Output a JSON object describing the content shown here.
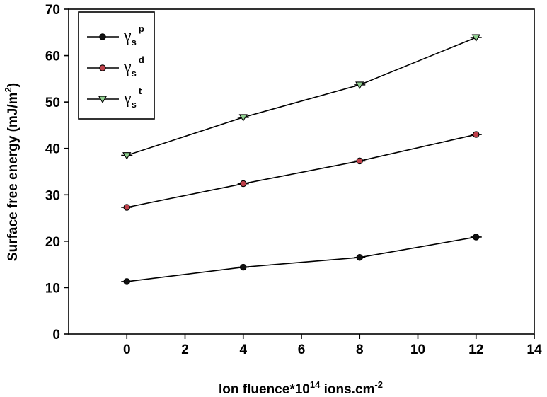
{
  "chart_data": {
    "type": "line",
    "title": "",
    "xlabel": "Ion fluence*10",
    "xlabel_sup": "14",
    "xlabel_tail": " ions.cm",
    "xlabel_tail_sup": "-2",
    "ylabel": "Surface free energy (mJ/m",
    "ylabel_sup": "2",
    "ylabel_tail": ")",
    "xlim": [
      -2,
      14
    ],
    "ylim": [
      0,
      70
    ],
    "xticks": [
      0,
      2,
      4,
      6,
      8,
      10,
      12,
      14
    ],
    "yticks": [
      0,
      10,
      20,
      30,
      40,
      50,
      60,
      70
    ],
    "x": [
      0,
      4,
      8,
      12
    ],
    "legend_position": "top-left",
    "grid": false,
    "series": [
      {
        "name": "γ",
        "sub": "s",
        "sup": "p",
        "marker": "circle",
        "color": "#111111",
        "values": [
          11.3,
          14.4,
          16.5,
          20.9
        ]
      },
      {
        "name": "γ",
        "sub": "s",
        "sup": "d",
        "marker": "circle",
        "color": "#c0404a",
        "values": [
          27.3,
          32.4,
          37.3,
          43.0
        ]
      },
      {
        "name": "γ",
        "sub": "s",
        "sup": "t",
        "marker": "triangle-down",
        "color": "#90d090",
        "values": [
          38.5,
          46.7,
          53.7,
          63.9
        ]
      }
    ]
  }
}
